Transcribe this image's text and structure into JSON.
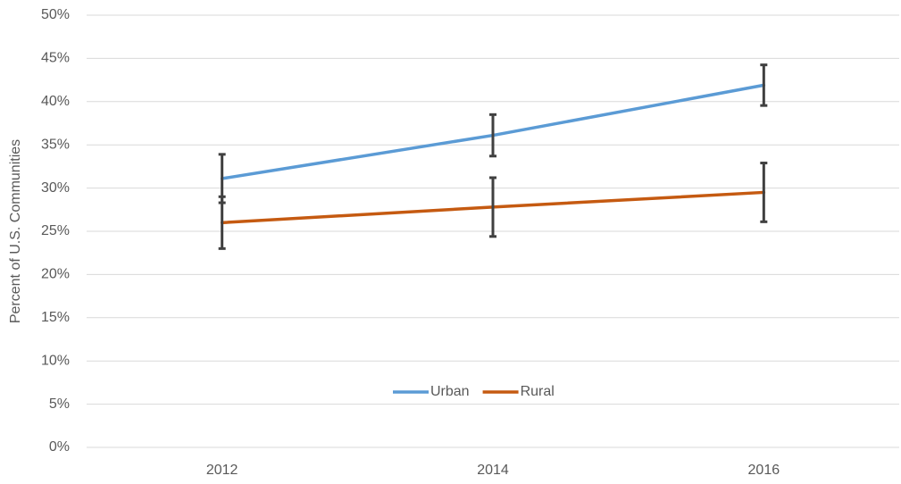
{
  "chart_data": {
    "type": "line",
    "y_label": "Percent of U.S. Communities",
    "categories": [
      "2012",
      "2014",
      "2016"
    ],
    "series": [
      {
        "name": "Urban",
        "color": "#5b9bd5",
        "values": [
          31.1,
          36.1,
          41.9
        ],
        "errors": [
          2.8,
          2.4,
          2.35
        ]
      },
      {
        "name": "Rural",
        "color": "#c55a11",
        "values": [
          26.0,
          27.8,
          29.5
        ],
        "errors": [
          3.0,
          3.4,
          3.4
        ]
      }
    ],
    "error_color": "#404040",
    "ylim": [
      0,
      50
    ],
    "yticks": [
      {
        "value": 0,
        "label": "0%"
      },
      {
        "value": 5,
        "label": "5%"
      },
      {
        "value": 10,
        "label": "10%"
      },
      {
        "value": 15,
        "label": "15%"
      },
      {
        "value": 20,
        "label": "20%"
      },
      {
        "value": 25,
        "label": "25%"
      },
      {
        "value": 30,
        "label": "30%"
      },
      {
        "value": 35,
        "label": "35%"
      },
      {
        "value": 40,
        "label": "40%"
      },
      {
        "value": 45,
        "label": "45%"
      },
      {
        "value": 50,
        "label": "50%"
      }
    ],
    "grid": true,
    "legend": "lower center"
  }
}
